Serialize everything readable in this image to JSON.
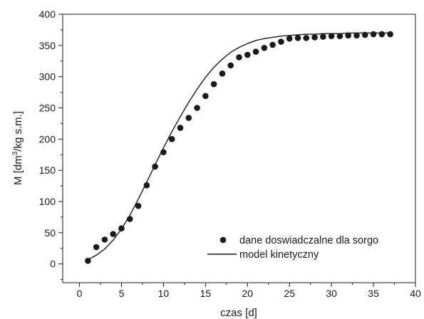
{
  "chart_data": {
    "type": "scatter",
    "xlabel": "czas [d]",
    "ylabel_parts": {
      "before": "M [dm",
      "sup": "3",
      "after": "/kg s.m.]"
    },
    "xlim": [
      -2,
      40
    ],
    "ylim": [
      -30,
      400
    ],
    "xticks": [
      0,
      5,
      10,
      15,
      20,
      25,
      30,
      35,
      40
    ],
    "yticks": [
      0,
      50,
      100,
      150,
      200,
      250,
      300,
      350,
      400
    ],
    "grid": false,
    "legend_position": "bottom-right",
    "series": [
      {
        "name": "dane doswiadczalne dla sorgo",
        "kind": "scatter",
        "color": "#1a1a1a",
        "x": [
          1,
          2,
          3,
          4,
          5,
          6,
          7,
          8,
          9,
          10,
          11,
          12,
          13,
          14,
          15,
          16,
          17,
          18,
          19,
          20,
          21,
          22,
          23,
          24,
          25,
          26,
          27,
          28,
          29,
          30,
          31,
          32,
          33,
          34,
          35,
          36,
          37
        ],
        "y": [
          5,
          27,
          39,
          48,
          57,
          72,
          93,
          126,
          156,
          179,
          200,
          218,
          234,
          250,
          269,
          288,
          305,
          318,
          331,
          335,
          340,
          346,
          351,
          356,
          361,
          362,
          362,
          363,
          364,
          365,
          365,
          366,
          366,
          367,
          368,
          368,
          368
        ]
      },
      {
        "name": "model kinetyczny",
        "kind": "line",
        "color": "#1a1a1a",
        "x": [
          1,
          2,
          3,
          4,
          5,
          6,
          7,
          8,
          9,
          10,
          11,
          12,
          13,
          14,
          15,
          16,
          17,
          18,
          19,
          20,
          21,
          22,
          23,
          24,
          25,
          26,
          27,
          28,
          29,
          30,
          31,
          32,
          33,
          34,
          35,
          36,
          37
        ],
        "y": [
          7,
          14,
          24,
          38,
          56,
          78,
          104,
          131,
          159,
          186,
          212,
          236,
          259,
          280,
          299,
          315,
          328,
          339,
          347,
          353,
          358,
          361,
          363,
          365,
          366,
          367,
          368,
          368,
          369,
          369,
          369,
          370,
          370,
          370,
          370,
          370,
          370
        ]
      }
    ]
  }
}
